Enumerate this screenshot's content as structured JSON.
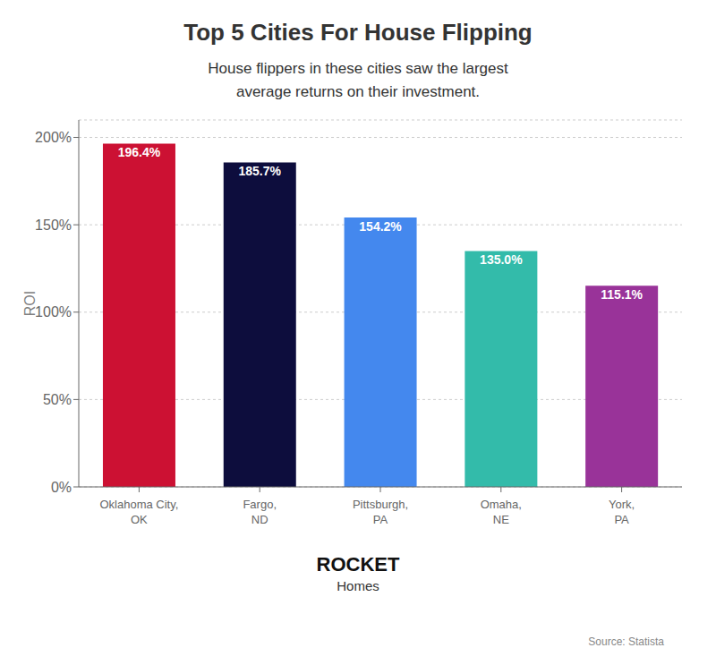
{
  "chart_data": {
    "type": "bar",
    "title": "Top 5 Cities For House Flipping",
    "subtitle": [
      "House flippers in these cities saw the largest",
      "average returns on their investment."
    ],
    "categories": [
      "Oklahoma City,\nOK",
      "Fargo,\nND",
      "Pittsburgh,\nPA",
      "Omaha,\nNE",
      "York,\nPA"
    ],
    "values": [
      196.4,
      185.7,
      154.2,
      135.0,
      115.1
    ],
    "value_labels": [
      "196.4%",
      "185.7%",
      "154.2%",
      "135.0%",
      "115.1%"
    ],
    "data_labels": true,
    "colors": [
      "#cc1133",
      "#0d0d3d",
      "#4488ee",
      "#33bbaa",
      "#993399"
    ],
    "ylabel": "ROI",
    "ylim": [
      0,
      210
    ],
    "yticks": [
      {
        "value": 0,
        "label": "0%"
      },
      {
        "value": 50,
        "label": "50%"
      },
      {
        "value": 100,
        "label": "100%"
      },
      {
        "value": 150,
        "label": "150%"
      },
      {
        "value": 200,
        "label": "200%"
      }
    ],
    "grid": true,
    "annotations": [
      "ROCKET",
      "Homes",
      "Source: Statista"
    ]
  }
}
